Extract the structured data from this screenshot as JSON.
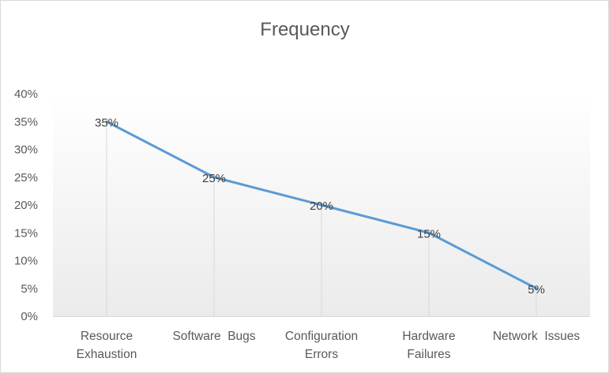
{
  "chart_data": {
    "type": "line",
    "title": "Frequency",
    "categories": [
      [
        "Resource",
        "Exhaustion"
      ],
      [
        "Software  Bugs"
      ],
      [
        "Configuration",
        "Errors"
      ],
      [
        "Hardware",
        "Failures"
      ],
      [
        "Network  Issues"
      ]
    ],
    "series": [
      {
        "values": [
          35,
          25,
          20,
          15,
          5
        ],
        "color": "#5b9bd5"
      }
    ],
    "data_labels": [
      "35%",
      "25%",
      "20%",
      "15%",
      "5%"
    ],
    "y_ticks": [
      "0%",
      "5%",
      "10%",
      "15%",
      "20%",
      "25%",
      "30%",
      "35%",
      "40%"
    ],
    "ylim": [
      0,
      40
    ],
    "plot_background": "gradient white to light gray",
    "drop_lines": true,
    "grid": false,
    "legend": "none"
  }
}
